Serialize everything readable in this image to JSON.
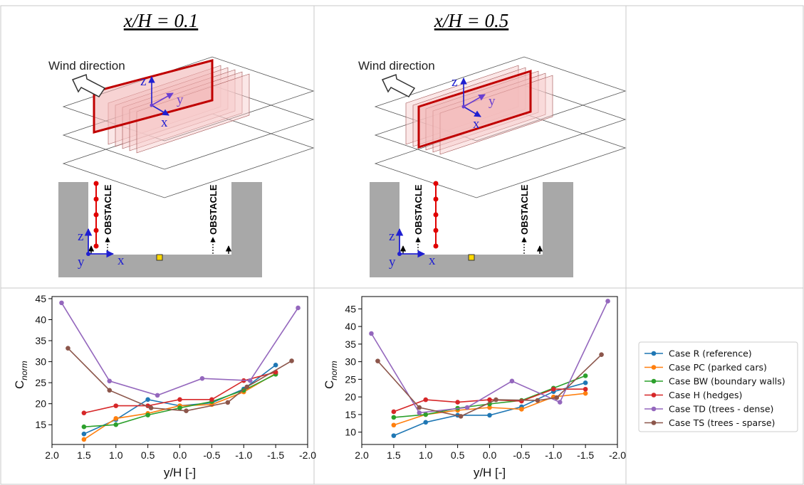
{
  "panels": [
    {
      "title": "x/H = 0.1",
      "wind_label": "Wind direction",
      "obstacle_label": "OBSTACLE",
      "iso_axes": {
        "z": "z",
        "y": "y",
        "x": "x"
      },
      "section_axes": {
        "z": "z",
        "y": "y",
        "x": "x"
      }
    },
    {
      "title": "x/H = 0.5",
      "wind_label": "Wind direction",
      "obstacle_label": "OBSTACLE",
      "iso_axes": {
        "z": "z",
        "y": "y",
        "x": "x"
      },
      "section_axes": {
        "z": "z",
        "y": "y",
        "x": "x"
      }
    }
  ],
  "legend": {
    "location": "right",
    "entries": [
      {
        "name": "Case R (reference)",
        "color": "#1f77b4"
      },
      {
        "name": "Case PC (parked cars)",
        "color": "#ff7f0e"
      },
      {
        "name": "Case BW (boundary walls)",
        "color": "#2ca02c"
      },
      {
        "name": "Case H (hedges)",
        "color": "#d62728"
      },
      {
        "name": "Case TD (trees - dense)",
        "color": "#9467bd"
      },
      {
        "name": "Case TS (trees - sparse)",
        "color": "#8c564b"
      }
    ]
  },
  "chart_data": [
    {
      "type": "line",
      "xlabel": "y/H [-]",
      "ylabel": "C_norm",
      "ylabel_main": "C",
      "ylabel_sub": "norm",
      "xlim": [
        2.0,
        -2.0
      ],
      "xticks": [
        "2.0",
        "1.5",
        "1.0",
        "0.5",
        "0.0",
        "-0.5",
        "-1.0",
        "-1.5",
        "-2.0"
      ],
      "ylim": [
        10.3,
        45.5
      ],
      "yticks": [
        "15",
        "20",
        "25",
        "30",
        "35",
        "40",
        "45"
      ],
      "grid": false,
      "series": [
        {
          "name": "Case R (reference)",
          "color": "#1f77b4",
          "x": [
            1.5,
            1.0,
            0.5,
            0.0,
            -0.5,
            -1.0,
            -1.5
          ],
          "y": [
            12.8,
            16.2,
            21.0,
            19.5,
            20.2,
            23.5,
            29.2
          ]
        },
        {
          "name": "Case PC (parked cars)",
          "color": "#ff7f0e",
          "x": [
            1.5,
            1.0,
            0.5,
            0.0,
            -0.5,
            -1.0,
            -1.5
          ],
          "y": [
            11.5,
            16.5,
            17.7,
            19.5,
            19.8,
            22.8,
            27.2
          ]
        },
        {
          "name": "Case BW (boundary walls)",
          "color": "#2ca02c",
          "x": [
            1.5,
            1.0,
            0.5,
            0.0,
            -0.5,
            -1.0,
            -1.5
          ],
          "y": [
            14.5,
            15.0,
            17.3,
            19.0,
            20.5,
            23.2,
            27.0
          ]
        },
        {
          "name": "Case H (hedges)",
          "color": "#d62728",
          "x": [
            1.5,
            1.0,
            0.5,
            0.0,
            -0.5,
            -1.0,
            -1.5
          ],
          "y": [
            17.8,
            19.5,
            19.5,
            21.0,
            21.0,
            25.5,
            27.5
          ]
        },
        {
          "name": "Case TD (trees - dense)",
          "color": "#9467bd",
          "x": [
            1.85,
            1.1,
            0.35,
            -0.35,
            -1.1,
            -1.85
          ],
          "y": [
            44.0,
            25.4,
            22.0,
            26.0,
            25.5,
            42.8
          ]
        },
        {
          "name": "Case TS (trees - sparse)",
          "color": "#8c564b",
          "x": [
            1.75,
            1.1,
            0.45,
            -0.1,
            -0.75,
            -1.05,
            -1.75
          ],
          "y": [
            33.2,
            23.2,
            19.0,
            18.3,
            20.3,
            24.0,
            30.2
          ]
        }
      ]
    },
    {
      "type": "line",
      "xlabel": "y/H [-]",
      "ylabel": "C_norm",
      "ylabel_main": "C",
      "ylabel_sub": "norm",
      "xlim": [
        2.0,
        -2.0
      ],
      "xticks": [
        "2.0",
        "1.5",
        "1.0",
        "0.5",
        "0.0",
        "-0.5",
        "-1.0",
        "-1.5",
        "-2.0"
      ],
      "ylim": [
        6.5,
        48.5
      ],
      "yticks": [
        "10",
        "15",
        "20",
        "25",
        "30",
        "35",
        "40",
        "45"
      ],
      "grid": false,
      "series": [
        {
          "name": "Case R (reference)",
          "color": "#1f77b4",
          "x": [
            1.5,
            1.0,
            0.5,
            0.0,
            -0.5,
            -1.0,
            -1.5
          ],
          "y": [
            9.0,
            12.8,
            14.8,
            14.8,
            17.2,
            21.5,
            24.0
          ]
        },
        {
          "name": "Case PC (parked cars)",
          "color": "#ff7f0e",
          "x": [
            1.5,
            1.0,
            0.5,
            0.0,
            -0.5,
            -1.0,
            -1.5
          ],
          "y": [
            12.0,
            15.0,
            16.2,
            17.0,
            16.5,
            20.0,
            21.0
          ]
        },
        {
          "name": "Case BW (boundary walls)",
          "color": "#2ca02c",
          "x": [
            1.5,
            1.0,
            0.5,
            0.0,
            -0.5,
            -1.0,
            -1.5
          ],
          "y": [
            14.2,
            15.0,
            16.8,
            18.0,
            19.0,
            22.5,
            26.0
          ]
        },
        {
          "name": "Case H (hedges)",
          "color": "#d62728",
          "x": [
            1.5,
            1.0,
            0.5,
            0.0,
            -0.5,
            -1.0,
            -1.5
          ],
          "y": [
            15.8,
            19.2,
            18.5,
            19.2,
            18.8,
            22.2,
            22.2
          ]
        },
        {
          "name": "Case TD (trees - dense)",
          "color": "#9467bd",
          "x": [
            1.85,
            1.1,
            0.35,
            -0.35,
            -1.1,
            -1.85
          ],
          "y": [
            38.0,
            15.5,
            17.0,
            24.5,
            18.5,
            47.2
          ]
        },
        {
          "name": "Case TS (trees - sparse)",
          "color": "#8c564b",
          "x": [
            1.75,
            1.1,
            0.45,
            -0.1,
            -0.75,
            -1.05,
            -1.75
          ],
          "y": [
            30.2,
            17.0,
            14.5,
            19.2,
            19.0,
            19.8,
            32.0
          ]
        }
      ]
    }
  ]
}
